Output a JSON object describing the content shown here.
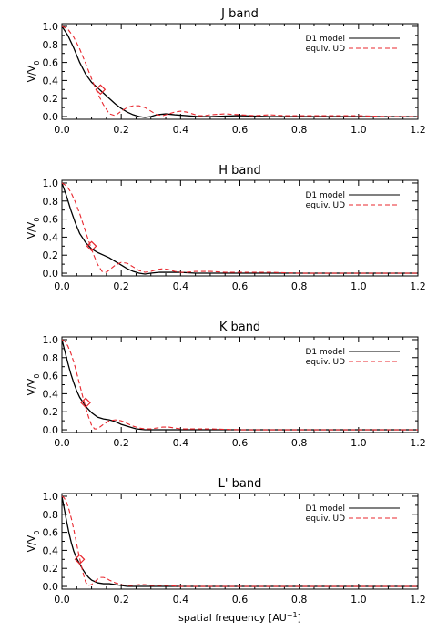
{
  "figure": {
    "x_axis_label": "spatial frequency [AU",
    "x_axis_label_sup": "−1",
    "x_axis_label_end": "]",
    "y_axis_label_main": "V/V",
    "y_axis_label_sub": "0"
  },
  "chart_data": [
    {
      "type": "line",
      "title": "J band",
      "xlabel": "",
      "ylabel": "V/V0",
      "xlim": [
        0.0,
        1.2
      ],
      "ylim": [
        -0.03,
        1.03
      ],
      "xticks": [
        "0.0",
        "0.2",
        "0.4",
        "0.6",
        "0.8",
        "1.0",
        "1.2"
      ],
      "yticks": [
        "0.0",
        "0.2",
        "0.4",
        "0.6",
        "0.8",
        "1.0"
      ],
      "legend_position": "top-right",
      "marker": {
        "shape": "diamond",
        "x": 0.13,
        "y": 0.3,
        "color": "#e8272e"
      },
      "series": [
        {
          "name": "D1 model",
          "color": "#000000",
          "dash": "solid",
          "x": [
            0.0,
            0.02,
            0.04,
            0.06,
            0.08,
            0.1,
            0.12,
            0.14,
            0.16,
            0.18,
            0.2,
            0.22,
            0.24,
            0.26,
            0.28,
            0.3,
            0.32,
            0.35,
            0.38,
            0.42,
            0.46,
            0.5,
            0.6,
            0.7,
            0.8,
            0.9,
            1.0,
            1.1,
            1.2
          ],
          "y": [
            1.0,
            0.9,
            0.76,
            0.6,
            0.47,
            0.38,
            0.32,
            0.26,
            0.2,
            0.14,
            0.09,
            0.05,
            0.02,
            0.0,
            -0.01,
            0.0,
            0.02,
            0.03,
            0.02,
            0.01,
            0.0,
            0.0,
            0.01,
            0.0,
            0.0,
            0.0,
            0.0,
            0.0,
            0.0
          ]
        },
        {
          "name": "equiv. UD",
          "color": "#e8272e",
          "dash": "dashed",
          "x": [
            0.0,
            0.02,
            0.04,
            0.06,
            0.08,
            0.1,
            0.12,
            0.14,
            0.16,
            0.18,
            0.2,
            0.22,
            0.24,
            0.26,
            0.28,
            0.3,
            0.32,
            0.34,
            0.36,
            0.38,
            0.4,
            0.42,
            0.44,
            0.46,
            0.48,
            0.5,
            0.55,
            0.6,
            0.65,
            0.7,
            0.75,
            0.8,
            0.9,
            1.0,
            1.1,
            1.2
          ],
          "y": [
            1.0,
            0.97,
            0.88,
            0.75,
            0.59,
            0.42,
            0.26,
            0.13,
            0.03,
            0.01,
            0.06,
            0.1,
            0.12,
            0.12,
            0.1,
            0.06,
            0.02,
            0.01,
            0.03,
            0.05,
            0.06,
            0.05,
            0.03,
            0.01,
            0.01,
            0.02,
            0.03,
            0.02,
            0.01,
            0.02,
            0.01,
            0.01,
            0.01,
            0.01,
            0.0,
            0.0
          ]
        }
      ]
    },
    {
      "type": "line",
      "title": "H band",
      "xlabel": "",
      "ylabel": "V/V0",
      "xlim": [
        0.0,
        1.2
      ],
      "ylim": [
        -0.03,
        1.03
      ],
      "xticks": [
        "0.0",
        "0.2",
        "0.4",
        "0.6",
        "0.8",
        "1.0",
        "1.2"
      ],
      "yticks": [
        "0.0",
        "0.2",
        "0.4",
        "0.6",
        "0.8",
        "1.0"
      ],
      "legend_position": "top-right",
      "marker": {
        "shape": "diamond",
        "x": 0.1,
        "y": 0.3,
        "color": "#e8272e"
      },
      "series": [
        {
          "name": "D1 model",
          "color": "#000000",
          "dash": "solid",
          "x": [
            0.0,
            0.015,
            0.03,
            0.045,
            0.06,
            0.08,
            0.1,
            0.12,
            0.14,
            0.16,
            0.18,
            0.2,
            0.22,
            0.24,
            0.26,
            0.28,
            0.3,
            0.33,
            0.36,
            0.4,
            0.45,
            0.5,
            0.6,
            0.7,
            0.8,
            0.9,
            1.0,
            1.1,
            1.2
          ],
          "y": [
            1.0,
            0.86,
            0.7,
            0.56,
            0.44,
            0.34,
            0.27,
            0.23,
            0.2,
            0.17,
            0.13,
            0.09,
            0.05,
            0.02,
            0.0,
            -0.01,
            0.0,
            0.01,
            0.01,
            0.01,
            0.0,
            0.0,
            0.0,
            0.0,
            0.0,
            0.0,
            0.0,
            0.0,
            0.0
          ]
        },
        {
          "name": "equiv. UD",
          "color": "#e8272e",
          "dash": "dashed",
          "x": [
            0.0,
            0.015,
            0.03,
            0.045,
            0.06,
            0.075,
            0.09,
            0.105,
            0.12,
            0.135,
            0.15,
            0.165,
            0.18,
            0.2,
            0.22,
            0.24,
            0.26,
            0.28,
            0.3,
            0.32,
            0.34,
            0.36,
            0.38,
            0.4,
            0.42,
            0.45,
            0.5,
            0.55,
            0.6,
            0.7,
            0.8,
            0.9,
            1.0,
            1.1,
            1.2
          ],
          "y": [
            1.0,
            0.97,
            0.9,
            0.79,
            0.66,
            0.51,
            0.36,
            0.22,
            0.1,
            0.02,
            0.01,
            0.05,
            0.09,
            0.12,
            0.11,
            0.07,
            0.03,
            0.01,
            0.02,
            0.04,
            0.05,
            0.04,
            0.02,
            0.01,
            0.01,
            0.02,
            0.02,
            0.01,
            0.01,
            0.01,
            0.0,
            0.0,
            0.0,
            0.0,
            0.0
          ]
        }
      ]
    },
    {
      "type": "line",
      "title": "K band",
      "xlabel": "",
      "ylabel": "V/V0",
      "xlim": [
        0.0,
        1.2
      ],
      "ylim": [
        -0.03,
        1.03
      ],
      "xticks": [
        "0.0",
        "0.2",
        "0.4",
        "0.6",
        "0.8",
        "1.0",
        "1.2"
      ],
      "yticks": [
        "0.0",
        "0.2",
        "0.4",
        "0.6",
        "0.8",
        "1.0"
      ],
      "legend_position": "top-right",
      "marker": {
        "shape": "diamond",
        "x": 0.08,
        "y": 0.3,
        "color": "#e8272e"
      },
      "series": [
        {
          "name": "D1 model",
          "color": "#000000",
          "dash": "solid",
          "x": [
            0.0,
            0.01,
            0.02,
            0.03,
            0.04,
            0.05,
            0.06,
            0.08,
            0.1,
            0.12,
            0.14,
            0.16,
            0.18,
            0.2,
            0.22,
            0.25,
            0.28,
            0.32,
            0.36,
            0.4,
            0.45,
            0.5,
            0.6,
            0.7,
            0.8,
            0.9,
            1.0,
            1.1,
            1.2
          ],
          "y": [
            1.0,
            0.87,
            0.74,
            0.62,
            0.52,
            0.43,
            0.36,
            0.26,
            0.19,
            0.14,
            0.12,
            0.11,
            0.09,
            0.06,
            0.04,
            0.01,
            0.0,
            0.0,
            0.0,
            0.0,
            0.0,
            0.0,
            0.0,
            0.0,
            0.0,
            0.0,
            0.0,
            0.0,
            0.0
          ]
        },
        {
          "name": "equiv. UD",
          "color": "#e8272e",
          "dash": "dashed",
          "x": [
            0.0,
            0.01,
            0.02,
            0.03,
            0.04,
            0.05,
            0.06,
            0.07,
            0.08,
            0.09,
            0.1,
            0.11,
            0.12,
            0.14,
            0.16,
            0.18,
            0.2,
            0.22,
            0.24,
            0.26,
            0.28,
            0.3,
            0.32,
            0.34,
            0.36,
            0.38,
            0.4,
            0.45,
            0.5,
            0.6,
            0.7,
            0.8,
            0.9,
            1.0,
            1.1,
            1.2
          ],
          "y": [
            1.0,
            0.98,
            0.93,
            0.85,
            0.75,
            0.63,
            0.5,
            0.37,
            0.25,
            0.14,
            0.05,
            0.01,
            0.01,
            0.06,
            0.1,
            0.11,
            0.1,
            0.07,
            0.04,
            0.02,
            0.01,
            0.01,
            0.02,
            0.03,
            0.03,
            0.02,
            0.01,
            0.01,
            0.01,
            0.0,
            0.0,
            0.0,
            0.0,
            0.0,
            0.0,
            0.0
          ]
        }
      ]
    },
    {
      "type": "line",
      "title": "L' band",
      "xlabel": "spatial frequency [AU−1]",
      "ylabel": "V/V0",
      "xlim": [
        0.0,
        1.2
      ],
      "ylim": [
        -0.03,
        1.03
      ],
      "xticks": [
        "0.0",
        "0.2",
        "0.4",
        "0.6",
        "0.8",
        "1.0",
        "1.2"
      ],
      "yticks": [
        "0.0",
        "0.2",
        "0.4",
        "0.6",
        "0.8",
        "1.0"
      ],
      "legend_position": "top-right",
      "marker": {
        "shape": "diamond",
        "x": 0.06,
        "y": 0.3,
        "color": "#e8272e"
      },
      "series": [
        {
          "name": "D1 model",
          "color": "#000000",
          "dash": "solid",
          "x": [
            0.0,
            0.008,
            0.016,
            0.024,
            0.032,
            0.04,
            0.05,
            0.06,
            0.07,
            0.08,
            0.09,
            0.1,
            0.12,
            0.14,
            0.16,
            0.18,
            0.2,
            0.22,
            0.25,
            0.3,
            0.35,
            0.4,
            0.5,
            0.6,
            0.7,
            0.8,
            0.9,
            1.0,
            1.1,
            1.2
          ],
          "y": [
            1.0,
            0.86,
            0.72,
            0.59,
            0.48,
            0.39,
            0.31,
            0.25,
            0.19,
            0.14,
            0.1,
            0.07,
            0.04,
            0.03,
            0.03,
            0.02,
            0.01,
            0.0,
            0.0,
            0.0,
            0.0,
            0.0,
            0.0,
            0.0,
            0.0,
            0.0,
            0.0,
            0.0,
            0.0,
            0.0
          ]
        },
        {
          "name": "equiv. UD",
          "color": "#e8272e",
          "dash": "dashed",
          "x": [
            0.0,
            0.008,
            0.016,
            0.024,
            0.032,
            0.04,
            0.048,
            0.056,
            0.064,
            0.072,
            0.08,
            0.088,
            0.1,
            0.11,
            0.12,
            0.13,
            0.14,
            0.15,
            0.16,
            0.18,
            0.2,
            0.22,
            0.24,
            0.26,
            0.28,
            0.3,
            0.35,
            0.4,
            0.5,
            0.6,
            0.7,
            0.8,
            0.9,
            1.0,
            1.1,
            1.2
          ],
          "y": [
            1.0,
            0.98,
            0.93,
            0.85,
            0.75,
            0.63,
            0.5,
            0.37,
            0.25,
            0.14,
            0.05,
            0.01,
            0.02,
            0.05,
            0.08,
            0.1,
            0.1,
            0.09,
            0.07,
            0.04,
            0.02,
            0.01,
            0.01,
            0.02,
            0.02,
            0.01,
            0.01,
            0.0,
            0.0,
            0.0,
            0.0,
            0.0,
            0.0,
            0.0,
            0.0,
            0.0
          ]
        }
      ]
    }
  ]
}
